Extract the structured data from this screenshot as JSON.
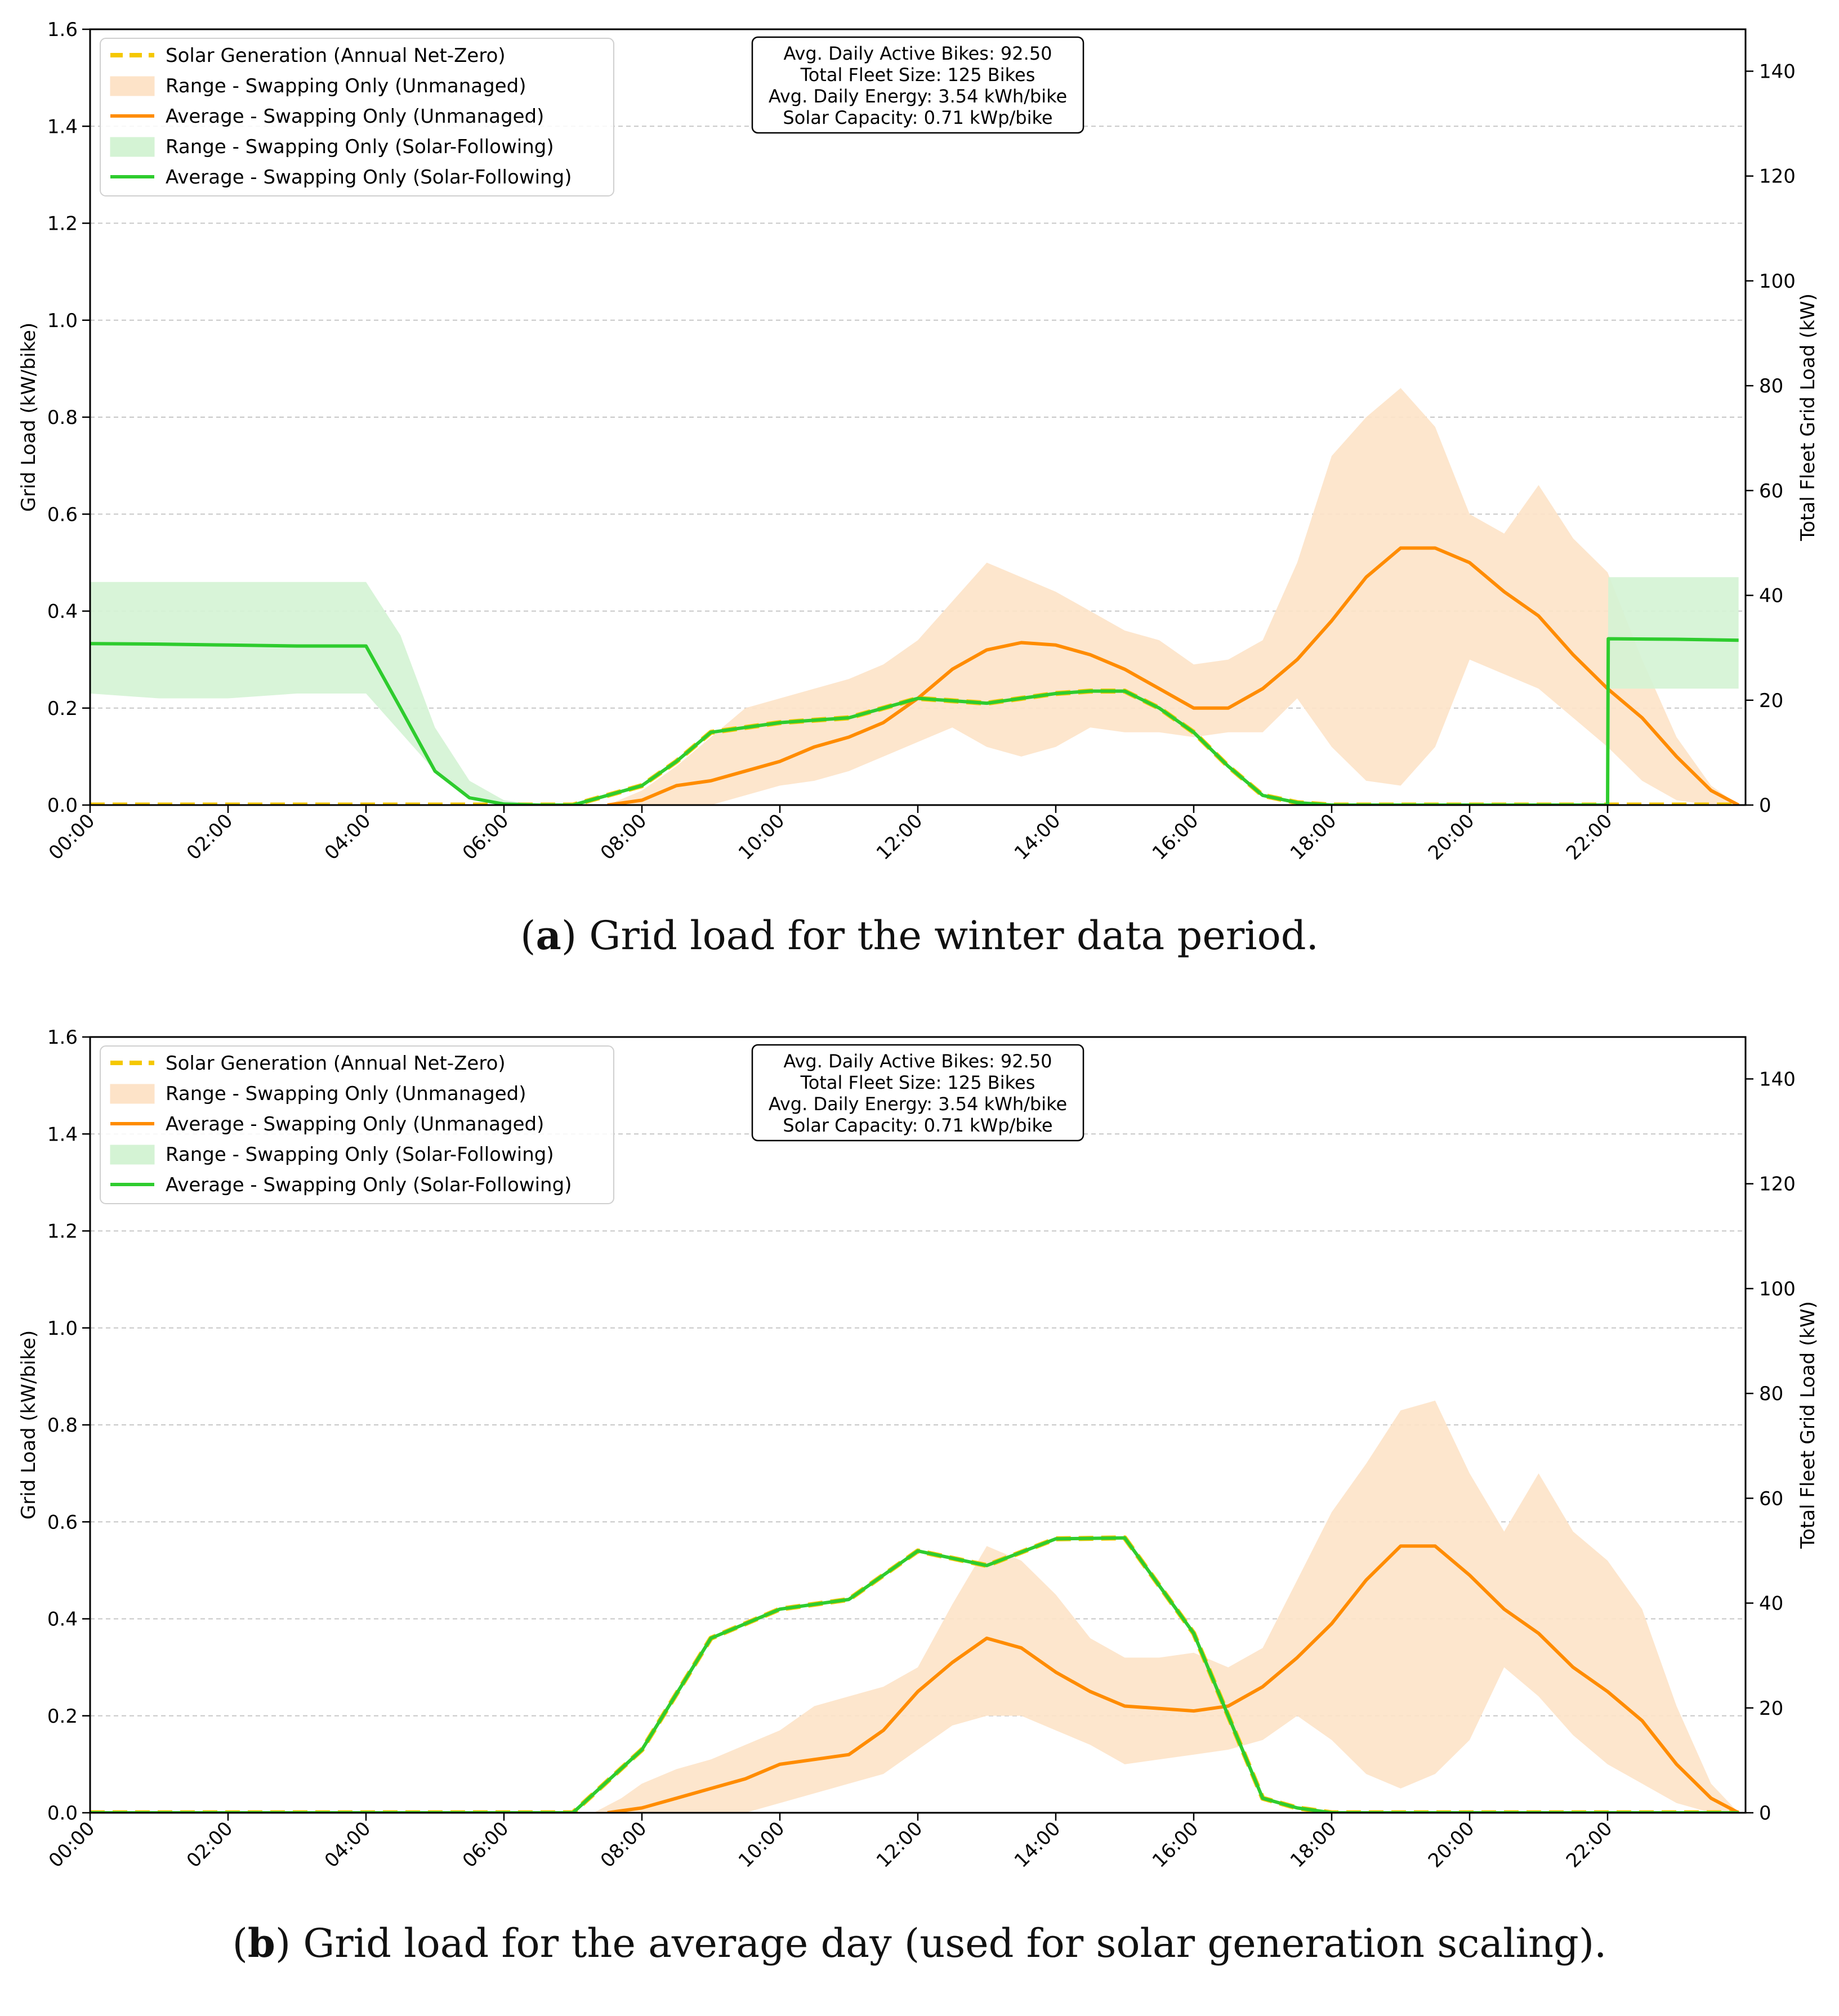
{
  "chart_data": [
    {
      "type": "line",
      "caption_letter": "a",
      "caption_text": "Grid load for the winter data period.",
      "ylabel": "Grid Load (kW/bike)",
      "ylabel_right": "Total Fleet Grid Load (kW)",
      "ylim": [
        0,
        1.6
      ],
      "yticks": [
        "0.0",
        "0.2",
        "0.4",
        "0.6",
        "0.8",
        "1.0",
        "1.2",
        "1.4",
        "1.6"
      ],
      "ylim_right": [
        0,
        148
      ],
      "yticks_right": [
        "0",
        "20",
        "40",
        "60",
        "80",
        "100",
        "120",
        "140"
      ],
      "xlim": [
        0,
        24
      ],
      "xticks": [
        "00:00",
        "02:00",
        "04:00",
        "06:00",
        "08:00",
        "10:00",
        "12:00",
        "14:00",
        "16:00",
        "18:00",
        "20:00",
        "22:00"
      ],
      "grid": "horizontal dashed",
      "legend_placement": "top-left",
      "legend": [
        {
          "label": "Solar Generation (Annual Net-Zero)",
          "kind": "dashed",
          "color": "#f5c800"
        },
        {
          "label": "Range - Swapping Only (Unmanaged)",
          "kind": "area",
          "color": "#fde3c8"
        },
        {
          "label": "Average - Swapping Only (Unmanaged)",
          "kind": "line",
          "color": "#ff8c00"
        },
        {
          "label": "Range - Swapping Only (Solar-Following)",
          "kind": "area",
          "color": "#d4f3d4"
        },
        {
          "label": "Average - Swapping Only (Solar-Following)",
          "kind": "line",
          "color": "#2ecc2e"
        }
      ],
      "annotation": [
        "Avg. Daily Active Bikes: 92.50",
        "Total Fleet Size: 125 Bikes",
        "Avg. Daily Energy: 3.54 kWh/bike",
        "Solar Capacity: 0.71 kWp/bike"
      ],
      "series": [
        {
          "name": "Range - Swapping Only (Unmanaged)",
          "kind": "range",
          "color": "#fde3c8",
          "x": [
            7.5,
            8.0,
            8.5,
            9.0,
            9.5,
            10.0,
            10.5,
            11.0,
            11.5,
            12.0,
            12.5,
            13.0,
            13.5,
            14.0,
            14.5,
            15.0,
            15.5,
            16.0,
            16.5,
            17.0,
            17.5,
            18.0,
            18.5,
            19.0,
            19.5,
            20.0,
            20.5,
            21.0,
            21.5,
            22.0,
            22.5,
            23.0,
            23.5,
            23.9
          ],
          "low": [
            0.0,
            0.0,
            0.0,
            0.0,
            0.02,
            0.04,
            0.05,
            0.07,
            0.1,
            0.13,
            0.16,
            0.12,
            0.1,
            0.12,
            0.16,
            0.15,
            0.15,
            0.14,
            0.15,
            0.15,
            0.22,
            0.12,
            0.05,
            0.04,
            0.12,
            0.3,
            0.27,
            0.24,
            0.18,
            0.12,
            0.05,
            0.01,
            0.0,
            0.0
          ],
          "high": [
            0.0,
            0.03,
            0.08,
            0.14,
            0.2,
            0.22,
            0.24,
            0.26,
            0.29,
            0.34,
            0.42,
            0.5,
            0.47,
            0.44,
            0.4,
            0.36,
            0.34,
            0.29,
            0.3,
            0.34,
            0.5,
            0.72,
            0.8,
            0.86,
            0.78,
            0.6,
            0.56,
            0.66,
            0.55,
            0.48,
            0.3,
            0.14,
            0.04,
            0.0
          ]
        },
        {
          "name": "Range - Swapping Only (Solar-Following)",
          "kind": "range",
          "color": "#d4f3d4",
          "x": [
            0.0,
            1.0,
            2.0,
            3.0,
            4.0,
            4.5,
            5.0,
            5.5,
            6.0,
            6.5,
            7.0,
            22.0,
            22.01,
            23.0,
            23.9
          ],
          "low": [
            0.23,
            0.22,
            0.22,
            0.23,
            0.23,
            0.15,
            0.07,
            0.02,
            0.0,
            0.0,
            0.0,
            0.0,
            0.24,
            0.24,
            0.24
          ],
          "high": [
            0.46,
            0.46,
            0.46,
            0.46,
            0.46,
            0.35,
            0.16,
            0.05,
            0.01,
            0.0,
            0.0,
            0.0,
            0.47,
            0.47,
            0.47
          ]
        },
        {
          "name": "Solar Generation (Annual Net-Zero)",
          "kind": "dashed",
          "color": "#f5c800",
          "x": [
            0,
            7.0,
            7.5,
            8.0,
            8.5,
            9.0,
            9.5,
            10.0,
            10.5,
            11.0,
            11.5,
            12.0,
            12.5,
            13.0,
            13.5,
            14.0,
            14.5,
            15.0,
            15.5,
            16.0,
            16.5,
            17.0,
            17.5,
            18.0,
            23.9
          ],
          "y": [
            0,
            0,
            0.02,
            0.04,
            0.09,
            0.15,
            0.16,
            0.17,
            0.175,
            0.18,
            0.2,
            0.22,
            0.215,
            0.21,
            0.22,
            0.23,
            0.235,
            0.235,
            0.2,
            0.15,
            0.08,
            0.02,
            0.005,
            0.0,
            0.0
          ]
        },
        {
          "name": "Average - Swapping Only (Unmanaged)",
          "kind": "line",
          "color": "#ff8c00",
          "x": [
            7.5,
            8.0,
            8.5,
            9.0,
            9.5,
            10.0,
            10.5,
            11.0,
            11.5,
            12.0,
            12.5,
            13.0,
            13.5,
            14.0,
            14.5,
            15.0,
            15.5,
            16.0,
            16.5,
            17.0,
            17.5,
            18.0,
            18.5,
            19.0,
            19.5,
            20.0,
            20.5,
            21.0,
            21.5,
            22.0,
            22.5,
            23.0,
            23.5,
            23.9
          ],
          "y": [
            0.0,
            0.01,
            0.04,
            0.05,
            0.07,
            0.09,
            0.12,
            0.14,
            0.17,
            0.22,
            0.28,
            0.32,
            0.335,
            0.33,
            0.31,
            0.28,
            0.24,
            0.2,
            0.2,
            0.24,
            0.3,
            0.38,
            0.47,
            0.53,
            0.53,
            0.5,
            0.44,
            0.39,
            0.31,
            0.24,
            0.18,
            0.1,
            0.03,
            0.0
          ]
        },
        {
          "name": "Average - Swapping Only (Solar-Following)",
          "kind": "line",
          "color": "#2ecc2e",
          "x": [
            0,
            1.0,
            2.0,
            3.0,
            4.0,
            4.5,
            5.0,
            5.5,
            6.0,
            6.5,
            7.0,
            7.5,
            8.0,
            8.5,
            9.0,
            9.5,
            10.0,
            10.5,
            11.0,
            11.5,
            12.0,
            12.5,
            13.0,
            13.5,
            14.0,
            14.5,
            15.0,
            15.5,
            16.0,
            16.5,
            17.0,
            17.5,
            18.0,
            22.0,
            22.01,
            23.0,
            23.9
          ],
          "y": [
            0.333,
            0.332,
            0.33,
            0.328,
            0.328,
            0.2,
            0.07,
            0.015,
            0.002,
            0.0,
            0.0,
            0.02,
            0.04,
            0.09,
            0.15,
            0.16,
            0.17,
            0.175,
            0.18,
            0.2,
            0.22,
            0.215,
            0.21,
            0.22,
            0.23,
            0.235,
            0.235,
            0.2,
            0.15,
            0.08,
            0.02,
            0.005,
            0.0,
            0.0,
            0.343,
            0.342,
            0.34
          ]
        }
      ]
    },
    {
      "type": "line",
      "caption_letter": "b",
      "caption_text": "Grid load for the average day (used for solar generation scaling).",
      "ylabel": "Grid Load (kW/bike)",
      "ylabel_right": "Total Fleet Grid Load (kW)",
      "ylim": [
        0,
        1.6
      ],
      "yticks": [
        "0.0",
        "0.2",
        "0.4",
        "0.6",
        "0.8",
        "1.0",
        "1.2",
        "1.4",
        "1.6"
      ],
      "ylim_right": [
        0,
        148
      ],
      "yticks_right": [
        "0",
        "20",
        "40",
        "60",
        "80",
        "100",
        "120",
        "140"
      ],
      "xlim": [
        0,
        24
      ],
      "xticks": [
        "00:00",
        "02:00",
        "04:00",
        "06:00",
        "08:00",
        "10:00",
        "12:00",
        "14:00",
        "16:00",
        "18:00",
        "20:00",
        "22:00"
      ],
      "grid": "horizontal dashed",
      "legend_placement": "top-left",
      "legend": [
        {
          "label": "Solar Generation (Annual Net-Zero)",
          "kind": "dashed",
          "color": "#f5c800"
        },
        {
          "label": "Range - Swapping Only (Unmanaged)",
          "kind": "area",
          "color": "#fde3c8"
        },
        {
          "label": "Average - Swapping Only (Unmanaged)",
          "kind": "line",
          "color": "#ff8c00"
        },
        {
          "label": "Range - Swapping Only (Solar-Following)",
          "kind": "area",
          "color": "#d4f3d4"
        },
        {
          "label": "Average - Swapping Only (Solar-Following)",
          "kind": "line",
          "color": "#2ecc2e"
        }
      ],
      "annotation": [
        "Avg. Daily Active Bikes: 92.50",
        "Total Fleet Size: 125 Bikes",
        "Avg. Daily Energy: 3.54 kWh/bike",
        "Solar Capacity: 0.71 kWp/bike"
      ],
      "series": [
        {
          "name": "Range - Swapping Only (Unmanaged)",
          "kind": "range",
          "color": "#fde3c8",
          "x": [
            7.3,
            7.7,
            8.0,
            8.5,
            9.0,
            9.5,
            10.0,
            10.5,
            11.0,
            11.5,
            12.0,
            12.5,
            13.0,
            13.5,
            14.0,
            14.5,
            15.0,
            15.5,
            16.0,
            16.5,
            17.0,
            17.5,
            18.0,
            18.5,
            19.0,
            19.5,
            20.0,
            20.5,
            21.0,
            21.5,
            22.0,
            22.5,
            23.0,
            23.5,
            23.9
          ],
          "low": [
            0.0,
            0.0,
            0.0,
            0.0,
            0.0,
            0.0,
            0.02,
            0.04,
            0.06,
            0.08,
            0.13,
            0.18,
            0.2,
            0.2,
            0.17,
            0.14,
            0.1,
            0.11,
            0.12,
            0.13,
            0.15,
            0.2,
            0.15,
            0.08,
            0.05,
            0.08,
            0.15,
            0.3,
            0.24,
            0.16,
            0.1,
            0.06,
            0.02,
            0.0,
            0.0
          ],
          "high": [
            0.0,
            0.03,
            0.06,
            0.09,
            0.11,
            0.14,
            0.17,
            0.22,
            0.24,
            0.26,
            0.3,
            0.43,
            0.55,
            0.52,
            0.45,
            0.36,
            0.32,
            0.32,
            0.33,
            0.3,
            0.34,
            0.48,
            0.62,
            0.72,
            0.83,
            0.85,
            0.7,
            0.58,
            0.7,
            0.58,
            0.52,
            0.42,
            0.22,
            0.06,
            0.0
          ]
        },
        {
          "name": "Solar Generation (Annual Net-Zero)",
          "kind": "dashed",
          "color": "#f5c800",
          "x": [
            0,
            7.0,
            8.0,
            9.0,
            10.0,
            11.0,
            12.0,
            13.0,
            14.0,
            15.0,
            16.0,
            16.5,
            17.0,
            17.5,
            18.0,
            23.9
          ],
          "y": [
            0,
            0,
            0.13,
            0.36,
            0.42,
            0.44,
            0.54,
            0.51,
            0.565,
            0.567,
            0.37,
            0.2,
            0.03,
            0.01,
            0.0,
            0.0
          ]
        },
        {
          "name": "Average - Swapping Only (Unmanaged)",
          "kind": "line",
          "color": "#ff8c00",
          "x": [
            7.5,
            8.0,
            8.5,
            9.0,
            9.5,
            10.0,
            10.5,
            11.0,
            11.5,
            12.0,
            12.5,
            13.0,
            13.5,
            14.0,
            14.5,
            15.0,
            15.5,
            16.0,
            16.5,
            17.0,
            17.5,
            18.0,
            18.5,
            19.0,
            19.5,
            20.0,
            20.5,
            21.0,
            21.5,
            22.0,
            22.5,
            23.0,
            23.5,
            23.9
          ],
          "y": [
            0.0,
            0.01,
            0.03,
            0.05,
            0.07,
            0.1,
            0.11,
            0.12,
            0.17,
            0.25,
            0.31,
            0.36,
            0.34,
            0.29,
            0.25,
            0.22,
            0.215,
            0.21,
            0.22,
            0.26,
            0.32,
            0.39,
            0.48,
            0.55,
            0.55,
            0.49,
            0.42,
            0.37,
            0.3,
            0.25,
            0.19,
            0.1,
            0.03,
            0.0
          ]
        },
        {
          "name": "Average - Swapping Only (Solar-Following)",
          "kind": "line",
          "color": "#2ecc2e",
          "x": [
            0,
            7.0,
            8.0,
            9.0,
            10.0,
            11.0,
            12.0,
            13.0,
            14.0,
            15.0,
            16.0,
            16.5,
            17.0,
            17.5,
            18.0,
            23.9
          ],
          "y": [
            0,
            0,
            0.13,
            0.36,
            0.42,
            0.44,
            0.54,
            0.51,
            0.565,
            0.567,
            0.37,
            0.2,
            0.03,
            0.01,
            0.0,
            0.0
          ]
        }
      ]
    }
  ]
}
